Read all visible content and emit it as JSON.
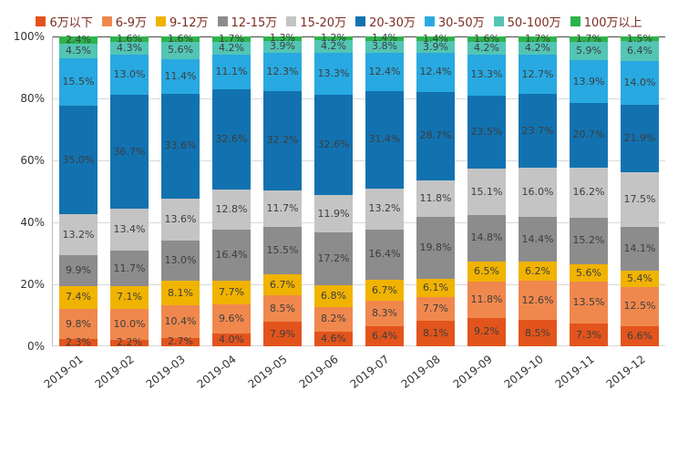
{
  "chart_data": {
    "type": "bar",
    "stacked": true,
    "percent": true,
    "title": "",
    "xlabel": "",
    "ylabel": "",
    "ylim": [
      0,
      100
    ],
    "grid": true,
    "legend_position": "top",
    "y_ticks": [
      "0%",
      "20%",
      "40%",
      "60%",
      "80%",
      "100%"
    ],
    "categories": [
      "2019-01",
      "2019-02",
      "2019-03",
      "2019-04",
      "2019-05",
      "2019-06",
      "2019-07",
      "2019-08",
      "2019-09",
      "2019-10",
      "2019-11",
      "2019-12"
    ],
    "series": [
      {
        "name": "6万以下",
        "color": "#e2541c",
        "values": [
          2.3,
          2.2,
          2.7,
          4.0,
          7.9,
          4.6,
          6.4,
          8.1,
          9.2,
          8.5,
          7.3,
          6.6
        ]
      },
      {
        "name": "6-9万",
        "color": "#f0884e",
        "values": [
          9.8,
          10.0,
          10.4,
          9.6,
          8.5,
          8.2,
          8.3,
          7.7,
          11.8,
          12.6,
          13.5,
          12.5
        ]
      },
      {
        "name": "9-12万",
        "color": "#f0b300",
        "values": [
          7.4,
          7.1,
          8.1,
          7.7,
          6.7,
          6.8,
          6.7,
          6.1,
          6.5,
          6.2,
          5.6,
          5.4
        ]
      },
      {
        "name": "12-15万",
        "color": "#8c8c8c",
        "values": [
          9.9,
          11.7,
          13.0,
          16.4,
          15.5,
          17.2,
          16.4,
          19.8,
          14.8,
          14.4,
          15.2,
          14.1
        ]
      },
      {
        "name": "15-20万",
        "color": "#c4c4c4",
        "values": [
          13.2,
          13.4,
          13.6,
          12.8,
          11.7,
          11.9,
          13.2,
          11.8,
          15.1,
          16.0,
          16.2,
          17.5
        ]
      },
      {
        "name": "20-30万",
        "color": "#1272b0",
        "values": [
          35.0,
          36.7,
          33.6,
          32.6,
          32.2,
          32.6,
          31.4,
          28.7,
          23.5,
          23.7,
          20.7,
          21.9
        ]
      },
      {
        "name": "30-50万",
        "color": "#28a9e1",
        "values": [
          15.5,
          13.0,
          11.4,
          11.1,
          12.3,
          13.3,
          12.4,
          12.4,
          13.3,
          12.7,
          13.9,
          14.0
        ]
      },
      {
        "name": "50-100万",
        "color": "#52c5b4",
        "values": [
          4.5,
          4.3,
          5.6,
          4.2,
          3.9,
          4.2,
          3.8,
          3.9,
          4.2,
          4.2,
          5.9,
          6.4
        ]
      },
      {
        "name": "100万以上",
        "color": "#2cb34a",
        "values": [
          2.4,
          1.6,
          1.6,
          1.7,
          1.3,
          1.2,
          1.4,
          1.4,
          1.6,
          1.7,
          1.7,
          1.5
        ]
      }
    ]
  },
  "styles": {
    "background": "#ffffff",
    "label_color": "#3d3d3d",
    "legend_text_color": "#7c2d21",
    "axis_text_color": "#333333",
    "axis_line_color": "#bbbbbb",
    "grid_color": "#d8d8d8",
    "grid_top_color": "#4a4a4a"
  }
}
